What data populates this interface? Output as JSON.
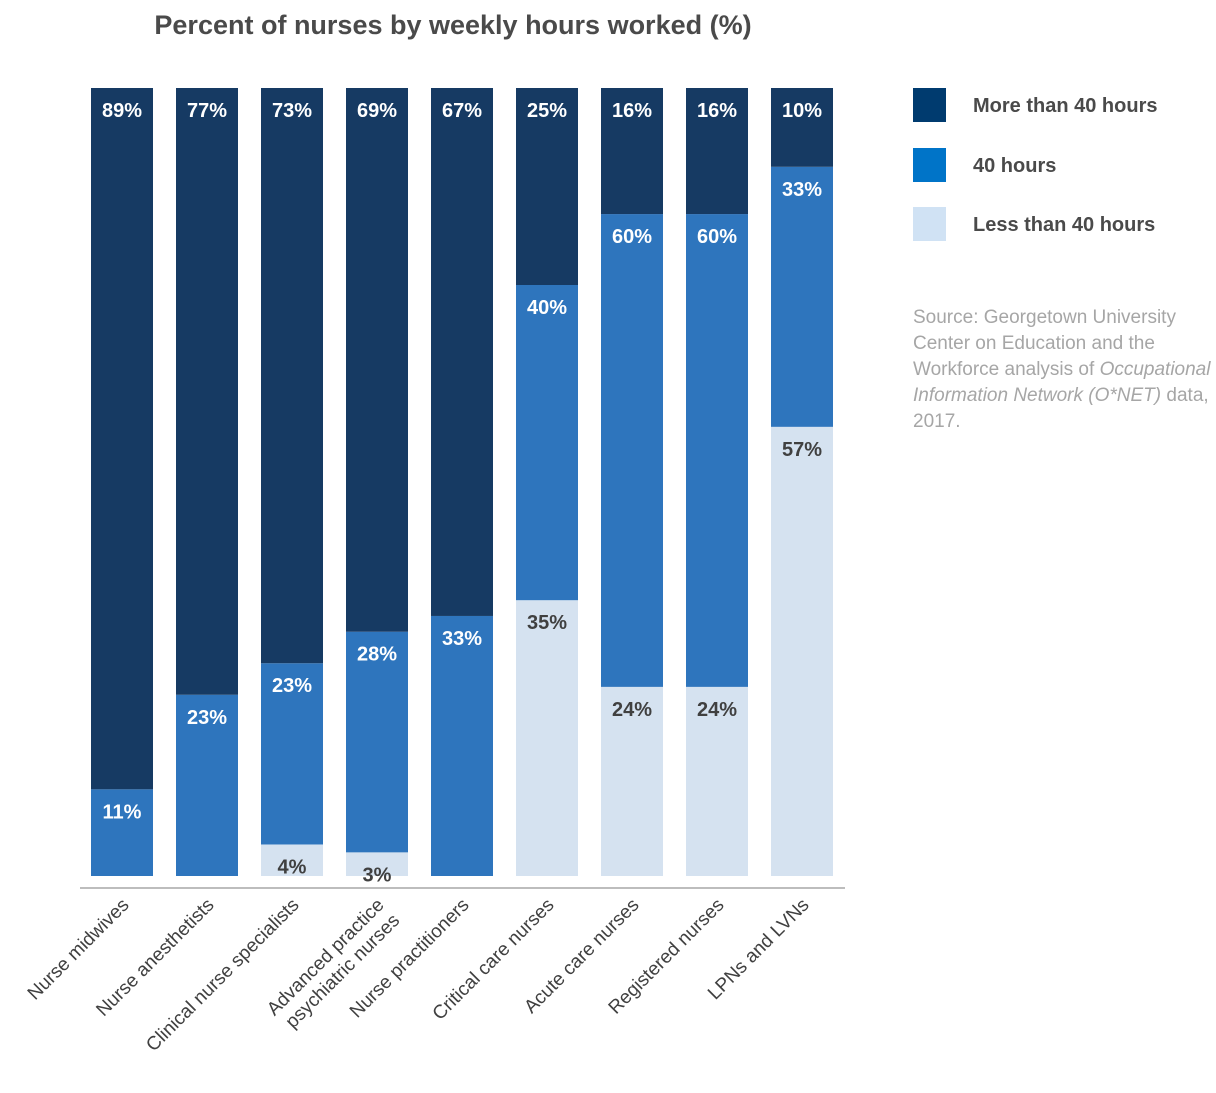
{
  "chart_data": {
    "type": "bar",
    "stacked": true,
    "title": "Percent of nurses by weekly hours worked (%)",
    "xlabel": "",
    "ylabel": "",
    "ylim": [
      0,
      100
    ],
    "grid": false,
    "legend_position": "right",
    "categories": [
      "Nurse midwives",
      "Nurse anesthetists",
      "Clinical nurse specialists",
      "Advanced practice psychiatric nurses",
      "Nurse practitioners",
      "Critical care nurses",
      "Acute care nurses",
      "Registered nurses",
      "LPNs and LVNs"
    ],
    "series": [
      {
        "name": "Less than 40 hours",
        "color": "#d5e2f0",
        "label_color": "#404040",
        "values": [
          0,
          0,
          4,
          3,
          0,
          35,
          24,
          24,
          57
        ],
        "labels": [
          "",
          "",
          "4%",
          "3%",
          "",
          "35%",
          "24%",
          "24%",
          "57%"
        ]
      },
      {
        "name": "40 hours",
        "color": "#2e75bd",
        "label_color": "#ffffff",
        "values": [
          11,
          23,
          23,
          28,
          33,
          40,
          60,
          60,
          33
        ],
        "labels": [
          "11%",
          "23%",
          "23%",
          "28%",
          "33%",
          "40%",
          "60%",
          "60%",
          "33%"
        ]
      },
      {
        "name": "More than 40 hours",
        "color": "#163a63",
        "label_color": "#ffffff",
        "values": [
          89,
          77,
          73,
          69,
          67,
          25,
          16,
          16,
          10
        ],
        "labels": [
          "89%",
          "77%",
          "73%",
          "69%",
          "67%",
          "25%",
          "16%",
          "16%",
          "10%"
        ]
      }
    ]
  },
  "legend": {
    "items": [
      {
        "label": "More than 40 hours",
        "color": "#003b6f"
      },
      {
        "label": "40 hours",
        "color": "#0074c8"
      },
      {
        "label": "Less than 40 hours",
        "color": "#d0e2f4"
      }
    ]
  },
  "source": {
    "prefix": "Source: Georgetown University Center on Education and the Workforce analysis of ",
    "italic": "Occupational Information Network (O*NET)",
    "suffix": " data, 2017."
  }
}
